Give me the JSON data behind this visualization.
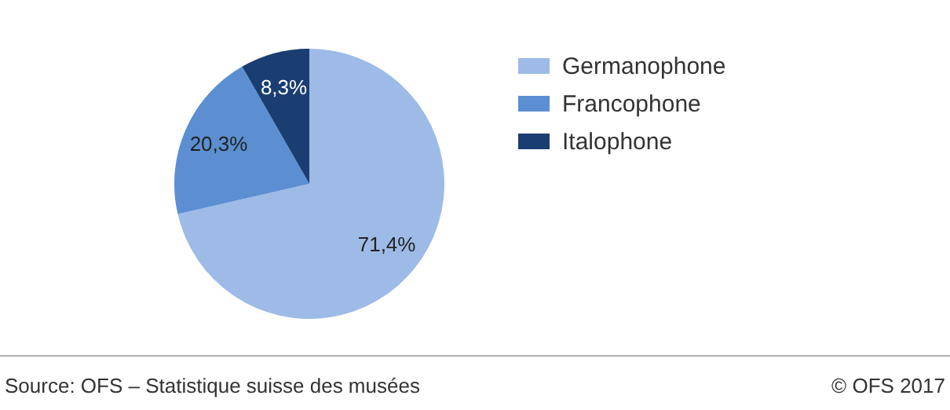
{
  "chart_data": {
    "type": "pie",
    "categories": [
      "Germanophone",
      "Francophone",
      "Italophone"
    ],
    "values": [
      71.4,
      20.3,
      8.3
    ],
    "colors": [
      "#9dbbe6",
      "#5b8fd2",
      "#1a3e72"
    ],
    "value_labels": [
      "71,4%",
      "20,3%",
      "8,3%"
    ],
    "legend": "right",
    "annotations": [
      "Source: OFS – Statistique suisse des musées",
      "© OFS 2017"
    ]
  }
}
